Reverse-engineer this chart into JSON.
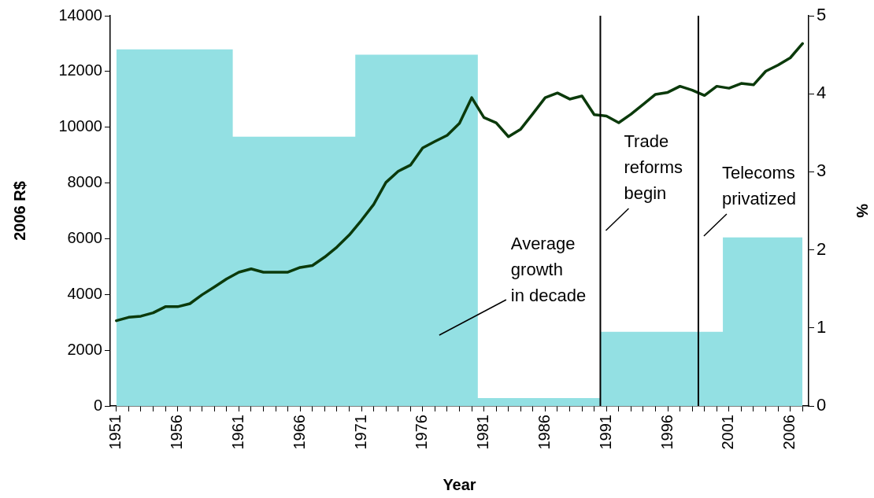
{
  "chart_data": {
    "type": "line",
    "xlabel": "Year",
    "ylabel": "2006 R$",
    "y2label": "%",
    "x": [
      1951,
      1952,
      1953,
      1954,
      1955,
      1956,
      1957,
      1958,
      1959,
      1960,
      1961,
      1962,
      1963,
      1964,
      1965,
      1966,
      1967,
      1968,
      1969,
      1970,
      1971,
      1972,
      1973,
      1974,
      1975,
      1976,
      1977,
      1978,
      1979,
      1980,
      1981,
      1982,
      1983,
      1984,
      1985,
      1986,
      1987,
      1988,
      1989,
      1990,
      1991,
      1992,
      1993,
      1994,
      1995,
      1996,
      1997,
      1998,
      1999,
      2000,
      2001,
      2002,
      2003,
      2004,
      2005,
      2006,
      2007
    ],
    "series": [
      {
        "type": "area",
        "axis": "y2",
        "color": "#93e0e3",
        "values": [
          4.57,
          4.57,
          4.57,
          4.57,
          4.57,
          4.57,
          4.57,
          4.57,
          4.57,
          4.57,
          3.45,
          3.45,
          3.45,
          3.45,
          3.45,
          3.45,
          3.45,
          3.45,
          3.45,
          3.45,
          4.5,
          4.5,
          4.5,
          4.5,
          4.5,
          4.5,
          4.5,
          4.5,
          4.5,
          4.5,
          0.1,
          0.1,
          0.1,
          0.1,
          0.1,
          0.1,
          0.1,
          0.1,
          0.1,
          0.1,
          0.95,
          0.95,
          0.95,
          0.95,
          0.95,
          0.95,
          0.95,
          0.95,
          0.95,
          0.95,
          2.16,
          2.16,
          2.16,
          2.16,
          2.16,
          2.16,
          2.16
        ]
      },
      {
        "color": "#0b3a0b",
        "values": [
          3060,
          3180,
          3220,
          3340,
          3560,
          3560,
          3670,
          3990,
          4270,
          4560,
          4800,
          4920,
          4800,
          4800,
          4800,
          4970,
          5040,
          5340,
          5700,
          6130,
          6660,
          7230,
          8020,
          8420,
          8640,
          9260,
          9490,
          9710,
          10140,
          11060,
          10350,
          10160,
          9660,
          9930,
          10490,
          11060,
          11230,
          11010,
          11120,
          10450,
          10400,
          10160,
          10470,
          10820,
          11180,
          11250,
          11470,
          11330,
          11140,
          11470,
          11400,
          11570,
          11520,
          12010,
          12230,
          12490,
          13000
        ]
      }
    ],
    "xlim": [
      1950.5,
      2007.5
    ],
    "xticks": [
      1951,
      {
        "value": 1952,
        "label": null
      },
      {
        "value": 1953,
        "label": null
      },
      {
        "value": 1954,
        "label": null
      },
      {
        "value": 1955,
        "label": null
      },
      1956,
      {
        "value": 1957,
        "label": null
      },
      {
        "value": 1958,
        "label": null
      },
      {
        "value": 1959,
        "label": null
      },
      {
        "value": 1960,
        "label": null
      },
      1961,
      {
        "value": 1962,
        "label": null
      },
      {
        "value": 1963,
        "label": null
      },
      {
        "value": 1964,
        "label": null
      },
      {
        "value": 1965,
        "label": null
      },
      1966,
      {
        "value": 1967,
        "label": null
      },
      {
        "value": 1968,
        "label": null
      },
      {
        "value": 1969,
        "label": null
      },
      {
        "value": 1970,
        "label": null
      },
      1971,
      {
        "value": 1972,
        "label": null
      },
      {
        "value": 1973,
        "label": null
      },
      {
        "value": 1974,
        "label": null
      },
      {
        "value": 1975,
        "label": null
      },
      1976,
      {
        "value": 1977,
        "label": null
      },
      {
        "value": 1978,
        "label": null
      },
      {
        "value": 1979,
        "label": null
      },
      {
        "value": 1980,
        "label": null
      },
      1981,
      {
        "value": 1982,
        "label": null
      },
      {
        "value": 1983,
        "label": null
      },
      {
        "value": 1984,
        "label": null
      },
      {
        "value": 1985,
        "label": null
      },
      1986,
      {
        "value": 1987,
        "label": null
      },
      {
        "value": 1988,
        "label": null
      },
      {
        "value": 1989,
        "label": null
      },
      {
        "value": 1990,
        "label": null
      },
      1991,
      {
        "value": 1992,
        "label": null
      },
      {
        "value": 1993,
        "label": null
      },
      {
        "value": 1994,
        "label": null
      },
      {
        "value": 1995,
        "label": null
      },
      1996,
      {
        "value": 1997,
        "label": null
      },
      {
        "value": 1998,
        "label": null
      },
      {
        "value": 1999,
        "label": null
      },
      {
        "value": 2000,
        "label": null
      },
      2001,
      {
        "value": 2002,
        "label": null
      },
      {
        "value": 2003,
        "label": null
      },
      {
        "value": 2004,
        "label": null
      },
      {
        "value": 2005,
        "label": null
      },
      2006,
      {
        "value": 2007,
        "label": null
      }
    ],
    "ylim": [
      0,
      14000
    ],
    "yticks": [
      0,
      2000,
      4000,
      6000,
      8000,
      10000,
      12000,
      14000
    ],
    "y2lim": [
      0,
      5
    ],
    "y2ticks": [
      0,
      1,
      2,
      3,
      4,
      5
    ],
    "ref_lines": [
      {
        "axis": "x",
        "value": 1990.5,
        "label": "Trade reforms begin",
        "color": "#000000"
      },
      {
        "axis": "x",
        "value": 1998.5,
        "label": "Telecoms privatized",
        "color": "#000000"
      }
    ],
    "annotations": [
      "Average growth in decade"
    ],
    "grid": false,
    "legend": false,
    "marker": "none",
    "line_style": "solid"
  }
}
